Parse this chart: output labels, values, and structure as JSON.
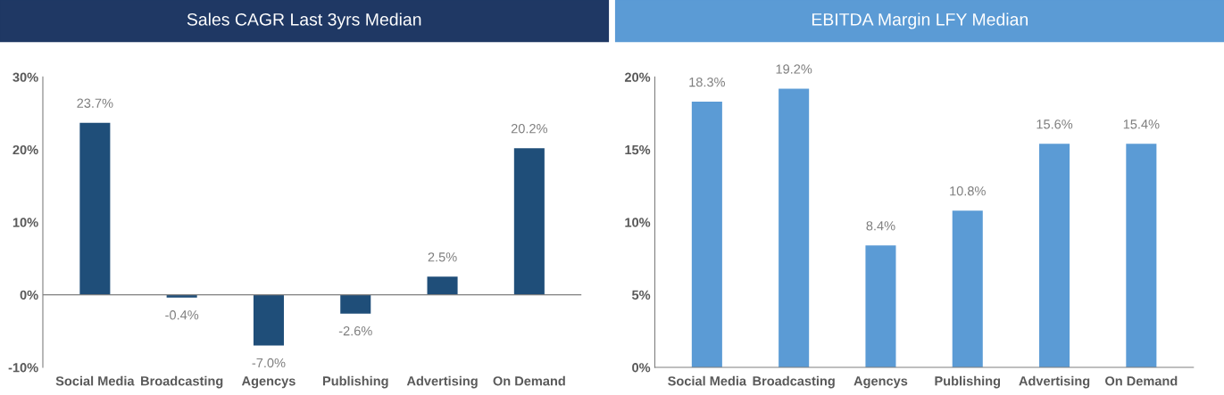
{
  "chart_data": [
    {
      "type": "bar",
      "title": "Sales CAGR Last 3yrs Median",
      "categories": [
        "Social Media",
        "Broadcasting",
        "Agencys",
        "Publishing",
        "Advertising",
        "On Demand"
      ],
      "series": [
        {
          "color": "#1f4e79",
          "values": [
            23.7,
            -0.4,
            -7.0,
            -2.6,
            2.5,
            20.2
          ]
        }
      ],
      "value_labels": [
        "23.7%",
        "-0.4%",
        "-7.0%",
        "-2.6%",
        "2.5%",
        "20.2%"
      ],
      "ylim": [
        -10,
        30
      ],
      "yticks": [
        {
          "value": -10,
          "label": "-10%"
        },
        {
          "value": 0,
          "label": "0%"
        },
        {
          "value": 10,
          "label": "10%"
        },
        {
          "value": 20,
          "label": "20%"
        },
        {
          "value": 30,
          "label": "30%"
        }
      ],
      "grid": false,
      "legend": false,
      "ref_lines": [
        {
          "axis": "y",
          "value": 0,
          "color": "#7f7f7f"
        }
      ]
    },
    {
      "type": "bar",
      "title": "EBITDA Margin LFY Median",
      "categories": [
        "Social Media",
        "Broadcasting",
        "Agencys",
        "Publishing",
        "Advertising",
        "On Demand"
      ],
      "series": [
        {
          "color": "#5b9bd5",
          "values": [
            18.3,
            19.2,
            8.4,
            10.8,
            15.4,
            15.4
          ]
        }
      ],
      "value_labels": [
        "18.3%",
        "19.2%",
        "8.4%",
        "10.8%",
        "15.6%",
        "15.4%"
      ],
      "ylim": [
        0,
        20
      ],
      "yticks": [
        {
          "value": 0,
          "label": "0%"
        },
        {
          "value": 5,
          "label": "5%"
        },
        {
          "value": 10,
          "label": "10%"
        },
        {
          "value": 15,
          "label": "15%"
        },
        {
          "value": 20,
          "label": "20%"
        }
      ],
      "grid": false,
      "legend": false
    }
  ]
}
